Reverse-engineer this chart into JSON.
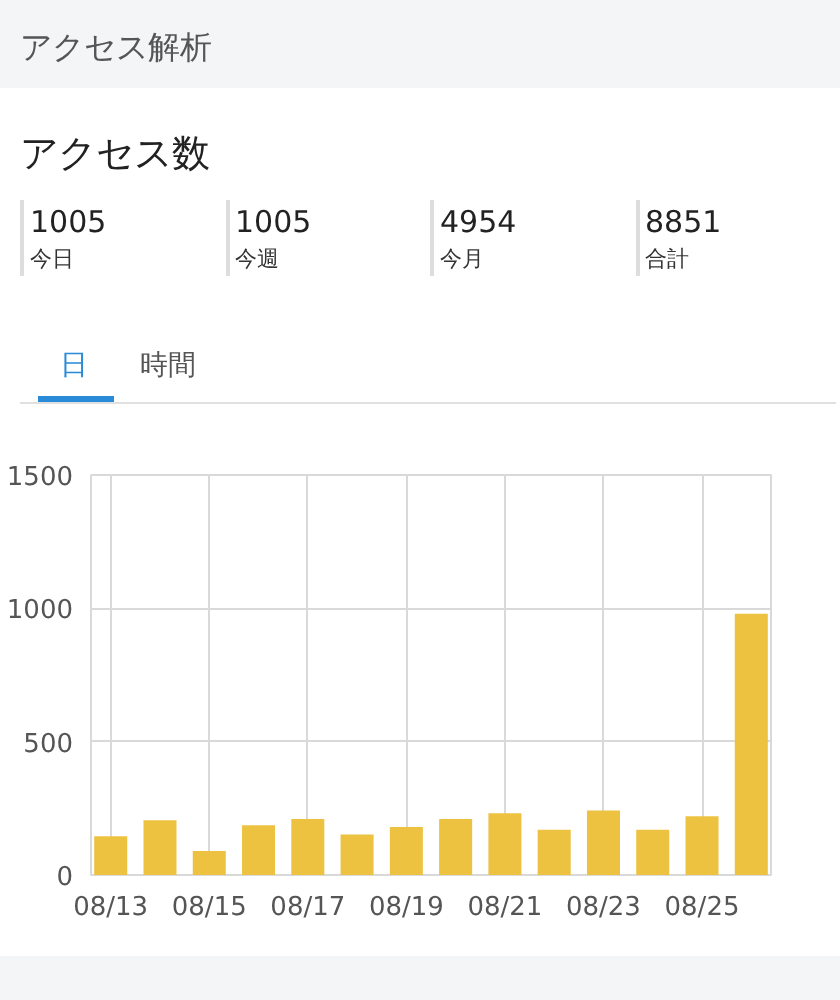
{
  "chart_data": {
    "type": "bar",
    "title": "アクセス数",
    "annotations": [
      "アクセス解析",
      "1005",
      "今日",
      "1005",
      "今週",
      "4954",
      "今月",
      "8851",
      "合計",
      "日",
      "時間"
    ],
    "categories": [
      "08/13",
      null,
      "08/15",
      null,
      "08/17",
      null,
      "08/19",
      null,
      "08/21",
      null,
      "08/23",
      null,
      "08/25",
      null
    ],
    "values": [
      145,
      205,
      90,
      187,
      210,
      152,
      180,
      210,
      232,
      170,
      242,
      170,
      220,
      980
    ],
    "color": "#edc240",
    "ylim": [
      0,
      1500
    ],
    "yticks": [
      0,
      500,
      1000,
      1500
    ],
    "grid": true
  }
}
